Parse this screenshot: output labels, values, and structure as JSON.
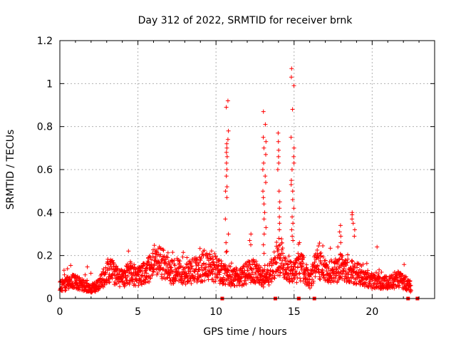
{
  "chart_data": {
    "type": "scatter",
    "title": "Day 312 of 2022, SRMTID for receiver brnk",
    "xlabel": "GPS time / hours",
    "ylabel": "SRMTID / TECUs",
    "xlim": [
      0,
      24
    ],
    "ylim": [
      0,
      1.2
    ],
    "xticks": [
      0,
      5,
      10,
      15,
      20
    ],
    "xtick_labels": [
      "0",
      "5",
      "10",
      "15",
      "20"
    ],
    "yticks": [
      0,
      0.2,
      0.4,
      0.6,
      0.8,
      1,
      1.2
    ],
    "ytick_labels": [
      "0",
      "0.2",
      "0.4",
      "0.6",
      "0.8",
      "1",
      "1.2"
    ],
    "grid": true,
    "marker": "+",
    "color": "#ff0000",
    "baseline_profile": [
      [
        0.0,
        0.06
      ],
      [
        0.5,
        0.07
      ],
      [
        1.0,
        0.08
      ],
      [
        1.5,
        0.06
      ],
      [
        2.0,
        0.05
      ],
      [
        2.5,
        0.06
      ],
      [
        3.0,
        0.12
      ],
      [
        3.3,
        0.13
      ],
      [
        3.7,
        0.1
      ],
      [
        4.0,
        0.09
      ],
      [
        4.5,
        0.12
      ],
      [
        5.0,
        0.1
      ],
      [
        5.5,
        0.12
      ],
      [
        6.0,
        0.16
      ],
      [
        6.5,
        0.17
      ],
      [
        7.0,
        0.12
      ],
      [
        7.5,
        0.13
      ],
      [
        8.0,
        0.11
      ],
      [
        8.5,
        0.13
      ],
      [
        9.0,
        0.14
      ],
      [
        9.5,
        0.15
      ],
      [
        10.0,
        0.13
      ],
      [
        10.5,
        0.12
      ],
      [
        11.0,
        0.1
      ],
      [
        11.5,
        0.1
      ],
      [
        12.0,
        0.12
      ],
      [
        12.5,
        0.13
      ],
      [
        13.0,
        0.09
      ],
      [
        13.5,
        0.12
      ],
      [
        14.0,
        0.2
      ],
      [
        14.5,
        0.15
      ],
      [
        15.0,
        0.12
      ],
      [
        15.5,
        0.15
      ],
      [
        16.0,
        0.08
      ],
      [
        16.5,
        0.18
      ],
      [
        17.0,
        0.12
      ],
      [
        17.5,
        0.12
      ],
      [
        18.0,
        0.15
      ],
      [
        18.5,
        0.13
      ],
      [
        19.0,
        0.12
      ],
      [
        19.5,
        0.1
      ],
      [
        20.0,
        0.08
      ],
      [
        20.5,
        0.08
      ],
      [
        21.0,
        0.07
      ],
      [
        21.5,
        0.09
      ],
      [
        22.0,
        0.08
      ],
      [
        22.5,
        0.05
      ]
    ],
    "spikes": [
      {
        "x": 10.7,
        "y": [
          0.92,
          0.89,
          0.78,
          0.74,
          0.72,
          0.7,
          0.68,
          0.66,
          0.63,
          0.6,
          0.57,
          0.52,
          0.5,
          0.47,
          0.37,
          0.3,
          0.26,
          0.22
        ]
      },
      {
        "x": 13.1,
        "y": [
          0.87,
          0.81,
          0.75,
          0.73,
          0.7,
          0.67,
          0.63,
          0.6,
          0.57,
          0.54,
          0.5,
          0.47,
          0.44,
          0.4,
          0.37,
          0.33,
          0.3,
          0.25,
          0.21
        ]
      },
      {
        "x": 14.0,
        "y": [
          0.77,
          0.73,
          0.69,
          0.66,
          0.63,
          0.6,
          0.5,
          0.45,
          0.42,
          0.38,
          0.35,
          0.32,
          0.28,
          0.25
        ]
      },
      {
        "x": 14.9,
        "y": [
          1.07,
          1.03,
          0.99,
          0.88,
          0.75,
          0.7,
          0.66,
          0.63,
          0.6,
          0.55,
          0.53,
          0.5,
          0.46,
          0.42,
          0.38,
          0.35,
          0.32,
          0.29,
          0.27
        ]
      },
      {
        "x": 17.9,
        "y": [
          0.34,
          0.31,
          0.29,
          0.26,
          0.24
        ]
      },
      {
        "x": 18.8,
        "y": [
          0.4,
          0.39,
          0.37,
          0.35,
          0.32,
          0.29
        ]
      },
      {
        "x": 12.2,
        "y": [
          0.3,
          0.27,
          0.25
        ]
      },
      {
        "x": 20.4,
        "y": [
          0.24
        ]
      }
    ],
    "data_gaps_x": [
      10.4,
      13.8,
      15.3,
      16.3,
      22.3,
      22.9
    ]
  }
}
